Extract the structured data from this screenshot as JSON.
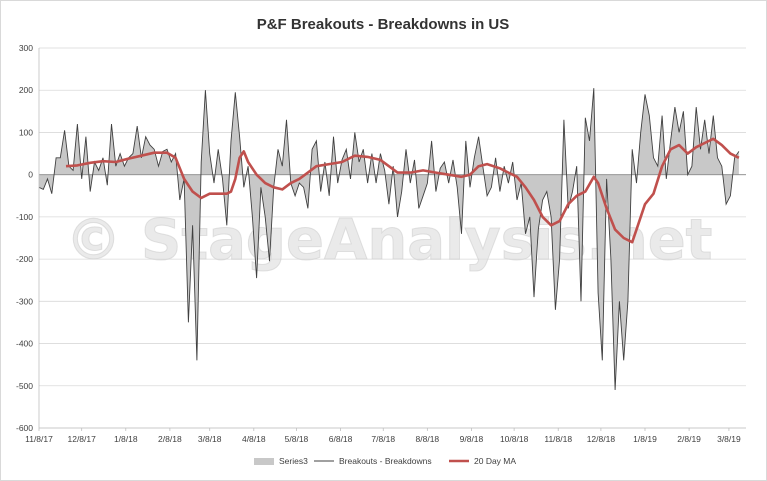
{
  "chart_data": {
    "type": "area",
    "title": "P&F Breakouts - Breakdowns in US",
    "xlabel": "",
    "ylabel": "",
    "ylim": [
      -600,
      300
    ],
    "yticks": [
      300,
      200,
      100,
      0,
      -100,
      -200,
      -300,
      -400,
      -500,
      -600
    ],
    "xticks": [
      "11/8/17",
      "12/8/17",
      "1/8/18",
      "2/8/18",
      "3/8/18",
      "4/8/18",
      "5/8/18",
      "6/8/18",
      "7/8/18",
      "8/8/18",
      "9/8/18",
      "10/8/18",
      "11/8/18",
      "12/8/18",
      "1/8/19",
      "2/8/19",
      "3/8/19"
    ],
    "grid": true,
    "legend_position": "bottom",
    "watermark": "© StageAnalysis.net",
    "series": [
      {
        "name": "Series3",
        "style": "area",
        "color": "#c8c8c8",
        "points": [
          [
            "11/8/17",
            -30
          ],
          [
            "11/11/17",
            -35
          ],
          [
            "11/14/17",
            -10
          ],
          [
            "11/17/17",
            -45
          ],
          [
            "11/20/17",
            40
          ],
          [
            "11/23/17",
            40
          ],
          [
            "11/26/17",
            105
          ],
          [
            "11/29/17",
            20
          ],
          [
            "12/2/17",
            10
          ],
          [
            "12/5/17",
            120
          ],
          [
            "12/8/17",
            -10
          ],
          [
            "12/11/17",
            90
          ],
          [
            "12/14/17",
            -40
          ],
          [
            "12/17/17",
            30
          ],
          [
            "12/20/17",
            10
          ],
          [
            "12/23/17",
            40
          ],
          [
            "12/26/17",
            -25
          ],
          [
            "12/29/17",
            120
          ],
          [
            "1/1/18",
            20
          ],
          [
            "1/4/18",
            50
          ],
          [
            "1/7/18",
            20
          ],
          [
            "1/10/18",
            40
          ],
          [
            "1/13/18",
            50
          ],
          [
            "1/16/18",
            115
          ],
          [
            "1/19/18",
            40
          ],
          [
            "1/22/18",
            90
          ],
          [
            "1/25/18",
            70
          ],
          [
            "1/28/18",
            60
          ],
          [
            "1/31/18",
            20
          ],
          [
            "2/3/18",
            55
          ],
          [
            "2/6/18",
            60
          ],
          [
            "2/9/18",
            30
          ],
          [
            "2/12/18",
            50
          ],
          [
            "2/15/18",
            -60
          ],
          [
            "2/18/18",
            -10
          ],
          [
            "2/21/18",
            -350
          ],
          [
            "2/24/18",
            -120
          ],
          [
            "2/27/18",
            -440
          ],
          [
            "3/2/18",
            30
          ],
          [
            "3/5/18",
            200
          ],
          [
            "3/8/18",
            50
          ],
          [
            "3/11/18",
            -20
          ],
          [
            "3/14/18",
            60
          ],
          [
            "3/17/18",
            -10
          ],
          [
            "3/20/18",
            -120
          ],
          [
            "3/23/18",
            80
          ],
          [
            "3/26/18",
            195
          ],
          [
            "3/29/18",
            90
          ],
          [
            "4/1/18",
            -30
          ],
          [
            "4/4/18",
            20
          ],
          [
            "4/7/18",
            -100
          ],
          [
            "4/10/18",
            -245
          ],
          [
            "4/13/18",
            -30
          ],
          [
            "4/16/18",
            -100
          ],
          [
            "4/19/18",
            -205
          ],
          [
            "4/22/18",
            -30
          ],
          [
            "4/25/18",
            60
          ],
          [
            "4/28/18",
            20
          ],
          [
            "5/1/18",
            130
          ],
          [
            "5/4/18",
            -20
          ],
          [
            "5/7/18",
            -50
          ],
          [
            "5/10/18",
            -20
          ],
          [
            "5/13/18",
            -30
          ],
          [
            "5/16/18",
            -80
          ],
          [
            "5/19/18",
            60
          ],
          [
            "5/22/18",
            80
          ],
          [
            "5/25/18",
            -40
          ],
          [
            "5/28/18",
            30
          ],
          [
            "5/31/18",
            -50
          ],
          [
            "6/3/18",
            90
          ],
          [
            "6/6/18",
            -20
          ],
          [
            "6/9/18",
            35
          ],
          [
            "6/12/18",
            60
          ],
          [
            "6/15/18",
            -10
          ],
          [
            "6/18/18",
            100
          ],
          [
            "6/21/18",
            30
          ],
          [
            "6/24/18",
            60
          ],
          [
            "6/27/18",
            -20
          ],
          [
            "6/30/18",
            50
          ],
          [
            "7/3/18",
            -20
          ],
          [
            "7/6/18",
            50
          ],
          [
            "7/9/18",
            10
          ],
          [
            "7/12/18",
            -70
          ],
          [
            "7/15/18",
            20
          ],
          [
            "7/18/18",
            -100
          ],
          [
            "7/21/18",
            -40
          ],
          [
            "7/24/18",
            60
          ],
          [
            "7/27/18",
            -20
          ],
          [
            "7/30/18",
            35
          ],
          [
            "8/2/18",
            -80
          ],
          [
            "8/5/18",
            -50
          ],
          [
            "8/8/18",
            -20
          ],
          [
            "8/11/18",
            80
          ],
          [
            "8/14/18",
            -40
          ],
          [
            "8/17/18",
            15
          ],
          [
            "8/20/18",
            30
          ],
          [
            "8/23/18",
            -20
          ],
          [
            "8/26/18",
            35
          ],
          [
            "8/29/18",
            -30
          ],
          [
            "9/1/18",
            -140
          ],
          [
            "9/4/18",
            80
          ],
          [
            "9/7/18",
            -30
          ],
          [
            "9/10/18",
            40
          ],
          [
            "9/13/18",
            90
          ],
          [
            "9/16/18",
            20
          ],
          [
            "9/19/18",
            -50
          ],
          [
            "9/22/18",
            -30
          ],
          [
            "9/25/18",
            40
          ],
          [
            "9/28/18",
            -40
          ],
          [
            "10/1/18",
            20
          ],
          [
            "10/4/18",
            -20
          ],
          [
            "10/7/18",
            30
          ],
          [
            "10/10/18",
            -60
          ],
          [
            "10/13/18",
            -20
          ],
          [
            "10/16/18",
            -140
          ],
          [
            "10/19/18",
            -100
          ],
          [
            "10/22/18",
            -290
          ],
          [
            "10/25/18",
            -130
          ],
          [
            "10/28/18",
            -60
          ],
          [
            "10/31/18",
            -40
          ],
          [
            "11/3/18",
            -100
          ],
          [
            "11/6/18",
            -320
          ],
          [
            "11/9/18",
            -200
          ],
          [
            "11/12/18",
            130
          ],
          [
            "11/15/18",
            -80
          ],
          [
            "11/18/18",
            -40
          ],
          [
            "11/21/18",
            20
          ],
          [
            "11/24/18",
            -300
          ],
          [
            "11/27/18",
            135
          ],
          [
            "11/30/18",
            80
          ],
          [
            "12/3/18",
            205
          ],
          [
            "12/6/18",
            -280
          ],
          [
            "12/9/18",
            -440
          ],
          [
            "12/12/18",
            -10
          ],
          [
            "12/15/18",
            -200
          ],
          [
            "12/18/18",
            -510
          ],
          [
            "12/21/18",
            -300
          ],
          [
            "12/24/18",
            -440
          ],
          [
            "12/27/18",
            -300
          ],
          [
            "12/30/18",
            60
          ],
          [
            "1/2/19",
            -20
          ],
          [
            "1/5/19",
            100
          ],
          [
            "1/8/19",
            190
          ],
          [
            "1/11/19",
            140
          ],
          [
            "1/14/19",
            40
          ],
          [
            "1/17/19",
            20
          ],
          [
            "1/20/19",
            140
          ],
          [
            "1/23/19",
            -10
          ],
          [
            "1/26/19",
            80
          ],
          [
            "1/29/19",
            160
          ],
          [
            "2/1/19",
            100
          ],
          [
            "2/4/19",
            150
          ],
          [
            "2/7/19",
            0
          ],
          [
            "2/10/19",
            20
          ],
          [
            "2/13/19",
            160
          ],
          [
            "2/16/19",
            60
          ],
          [
            "2/19/19",
            130
          ],
          [
            "2/22/19",
            50
          ],
          [
            "2/25/19",
            140
          ],
          [
            "2/28/19",
            40
          ],
          [
            "3/3/19",
            20
          ],
          [
            "3/6/19",
            -70
          ],
          [
            "3/9/19",
            -50
          ],
          [
            "3/12/19",
            40
          ],
          [
            "3/15/19",
            55
          ]
        ]
      },
      {
        "name": "Breakouts - Breakdowns",
        "style": "line",
        "color": "#404040",
        "points": "same as Series3"
      },
      {
        "name": "20 Day MA",
        "style": "line",
        "color": "#c0504d",
        "points": [
          [
            "11/27/17",
            20
          ],
          [
            "12/5/17",
            22
          ],
          [
            "12/14/17",
            28
          ],
          [
            "12/23/17",
            32
          ],
          [
            "1/1/18",
            30
          ],
          [
            "1/10/18",
            38
          ],
          [
            "1/19/18",
            45
          ],
          [
            "1/28/18",
            52
          ],
          [
            "2/6/18",
            52
          ],
          [
            "2/12/18",
            40
          ],
          [
            "2/18/18",
            -10
          ],
          [
            "2/24/18",
            -40
          ],
          [
            "3/2/18",
            -55
          ],
          [
            "3/8/18",
            -45
          ],
          [
            "3/14/18",
            -45
          ],
          [
            "3/20/18",
            -45
          ],
          [
            "3/23/18",
            -40
          ],
          [
            "3/26/18",
            -10
          ],
          [
            "3/29/18",
            40
          ],
          [
            "4/1/18",
            55
          ],
          [
            "4/4/18",
            30
          ],
          [
            "4/10/18",
            0
          ],
          [
            "4/16/18",
            -20
          ],
          [
            "4/22/18",
            -30
          ],
          [
            "4/28/18",
            -35
          ],
          [
            "5/4/18",
            -20
          ],
          [
            "5/10/18",
            -10
          ],
          [
            "5/16/18",
            5
          ],
          [
            "5/22/18",
            20
          ],
          [
            "5/31/18",
            25
          ],
          [
            "6/9/18",
            30
          ],
          [
            "6/18/18",
            45
          ],
          [
            "6/27/18",
            42
          ],
          [
            "7/6/18",
            35
          ],
          [
            "7/12/18",
            20
          ],
          [
            "7/18/18",
            5
          ],
          [
            "7/27/18",
            5
          ],
          [
            "8/5/18",
            10
          ],
          [
            "8/14/18",
            5
          ],
          [
            "8/23/18",
            0
          ],
          [
            "9/1/18",
            -5
          ],
          [
            "9/7/18",
            0
          ],
          [
            "9/13/18",
            20
          ],
          [
            "9/19/18",
            25
          ],
          [
            "9/28/18",
            15
          ],
          [
            "10/4/18",
            5
          ],
          [
            "10/10/18",
            -5
          ],
          [
            "10/16/18",
            -30
          ],
          [
            "10/22/18",
            -60
          ],
          [
            "10/28/18",
            -100
          ],
          [
            "11/3/18",
            -120
          ],
          [
            "11/9/18",
            -110
          ],
          [
            "11/15/18",
            -70
          ],
          [
            "11/21/18",
            -50
          ],
          [
            "11/27/18",
            -40
          ],
          [
            "12/3/18",
            -5
          ],
          [
            "12/6/18",
            -20
          ],
          [
            "12/12/18",
            -80
          ],
          [
            "12/18/18",
            -130
          ],
          [
            "12/24/18",
            -150
          ],
          [
            "12/30/18",
            -160
          ],
          [
            "1/2/19",
            -130
          ],
          [
            "1/8/19",
            -70
          ],
          [
            "1/14/19",
            -45
          ],
          [
            "1/20/19",
            20
          ],
          [
            "1/26/19",
            60
          ],
          [
            "2/1/19",
            70
          ],
          [
            "2/7/19",
            50
          ],
          [
            "2/13/19",
            65
          ],
          [
            "2/19/19",
            75
          ],
          [
            "2/25/19",
            85
          ],
          [
            "3/3/19",
            70
          ],
          [
            "3/9/19",
            50
          ],
          [
            "3/15/19",
            40
          ]
        ]
      }
    ]
  }
}
